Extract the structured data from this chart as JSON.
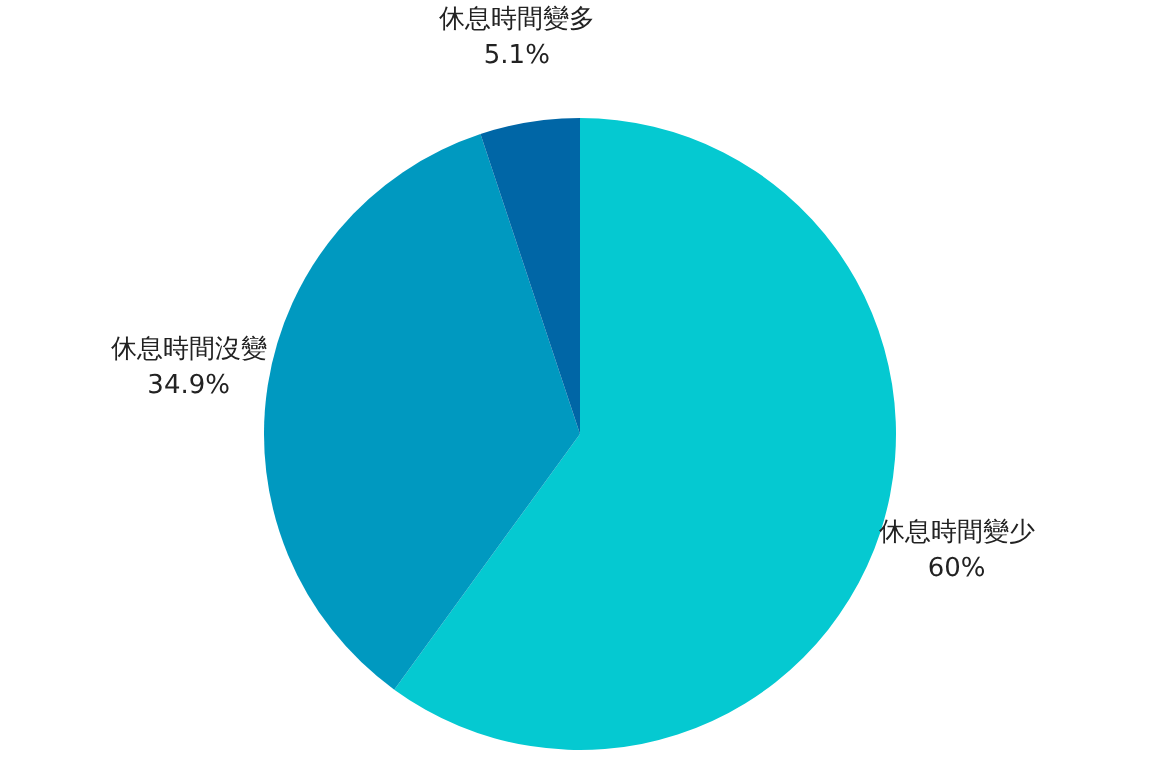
{
  "chart_data": {
    "type": "pie",
    "categories": [
      "休息時間變少",
      "休息時間沒變",
      "休息時間變多"
    ],
    "values": [
      60,
      34.9,
      5.1
    ],
    "value_labels": [
      "60%",
      "34.9%",
      "5.1%"
    ],
    "colors": [
      "#05c9d1",
      "#0099c0",
      "#0066a6"
    ]
  }
}
